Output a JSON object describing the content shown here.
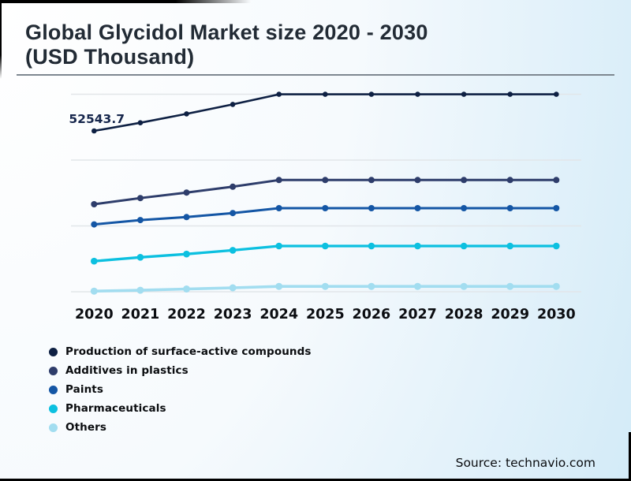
{
  "header": {
    "title_line1": "Global Glycidol Market size 2020 - 2030",
    "title_line2": "(USD Thousand)"
  },
  "source": {
    "label": "Source: technavio.com"
  },
  "chart_data": {
    "type": "line",
    "title": "Global Glycidol Market size 2020 - 2030 (USD Thousand)",
    "ylabel": "USD Thousand",
    "xlabel": "",
    "categories": [
      "2020",
      "2021",
      "2022",
      "2023",
      "2024",
      "2025",
      "2026",
      "2027",
      "2028",
      "2029",
      "2030"
    ],
    "first_point_label": "52543.7",
    "grid": "horizontal-only",
    "legend_position": "bottom-left",
    "ylim": [
      0,
      70000
    ],
    "series": [
      {
        "name": "Production of surface-active compounds",
        "color": "#0e2043",
        "values": [
          52543.7,
          55200,
          58100,
          61200,
          64500,
          64500,
          64500,
          64500,
          64500,
          64500,
          64500
        ]
      },
      {
        "name": "Additives in plastics",
        "color": "#2e3d6b",
        "values": [
          28600,
          30600,
          32400,
          34300,
          36500,
          36500,
          36500,
          36500,
          36500,
          36500,
          36500
        ]
      },
      {
        "name": "Paints",
        "color": "#1456a5",
        "values": [
          22000,
          23400,
          24400,
          25700,
          27300,
          27300,
          27300,
          27300,
          27300,
          27300,
          27300
        ]
      },
      {
        "name": "Pharmaceuticals",
        "color": "#0cc0e0",
        "values": [
          10000,
          11250,
          12300,
          13550,
          14950,
          14950,
          14950,
          14950,
          14950,
          14950,
          14950
        ]
      },
      {
        "name": "Others",
        "color": "#a2ddf0",
        "values": [
          200,
          500,
          900,
          1300,
          1750,
          1750,
          1750,
          1750,
          1750,
          1750,
          1750
        ]
      }
    ]
  }
}
